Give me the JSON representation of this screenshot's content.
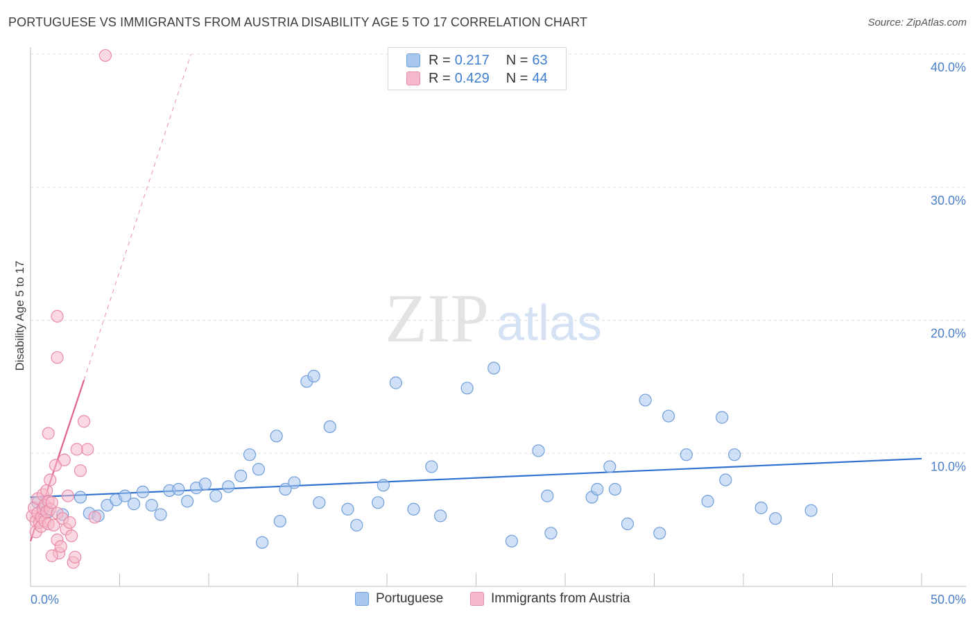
{
  "header": {
    "title": "PORTUGUESE VS IMMIGRANTS FROM AUSTRIA DISABILITY AGE 5 TO 17 CORRELATION CHART",
    "source": "Source: ZipAtlas.com"
  },
  "watermark": {
    "zip": "ZIP",
    "atlas": "atlas"
  },
  "legend": {
    "rows": [
      {
        "r_label": "R = ",
        "r_value": "0.217",
        "n_label": "N = ",
        "n_value": "63"
      },
      {
        "r_label": "R = ",
        "r_value": "0.429",
        "n_label": "N = ",
        "n_value": "44"
      }
    ]
  },
  "bottom_legend": {
    "series_a": "Portuguese",
    "series_b": "Immigrants from Austria"
  },
  "colors": {
    "blue_fill": "#a9c7ee",
    "blue_stroke": "#6f9ed9",
    "blue_line": "#2f6fcf",
    "pink_fill": "#f6b9cb",
    "pink_stroke": "#e98aa8",
    "pink_line": "#e0608c",
    "tick_text": "#4a7fc9",
    "grid": "#dcdcdc"
  },
  "chart_data": {
    "type": "scatter",
    "title": "PORTUGUESE VS IMMIGRANTS FROM AUSTRIA DISABILITY AGE 5 TO 17 CORRELATION CHART",
    "xlabel": "",
    "ylabel": "Disability Age 5 to 17",
    "xlim": [
      0,
      50
    ],
    "ylim": [
      0,
      40
    ],
    "x_tick_labels": [
      "0.0%",
      "50.0%"
    ],
    "y_ticks": [
      10,
      20,
      30,
      40
    ],
    "y_tick_labels": [
      "10.0%",
      "20.0%",
      "30.0%",
      "40.0%"
    ],
    "grid": true,
    "legend_position": "top-center",
    "series": [
      {
        "name": "Portuguese",
        "color": "#a9c7ee",
        "R": 0.217,
        "N": 63,
        "trend": {
          "x0": 0,
          "y0": 6.7,
          "x1": 50,
          "y1": 9.6,
          "style": "solid"
        },
        "points": [
          [
            0.4,
            6.3
          ],
          [
            0.7,
            5.9
          ],
          [
            1.0,
            5.6
          ],
          [
            1.8,
            5.4
          ],
          [
            2.8,
            6.7
          ],
          [
            3.3,
            5.5
          ],
          [
            3.8,
            5.3
          ],
          [
            4.3,
            6.1
          ],
          [
            4.8,
            6.5
          ],
          [
            5.3,
            6.8
          ],
          [
            5.8,
            6.2
          ],
          [
            6.3,
            7.1
          ],
          [
            6.8,
            6.1
          ],
          [
            7.3,
            5.4
          ],
          [
            7.8,
            7.2
          ],
          [
            8.3,
            7.3
          ],
          [
            8.8,
            6.4
          ],
          [
            9.3,
            7.4
          ],
          [
            9.8,
            7.7
          ],
          [
            10.4,
            6.8
          ],
          [
            11.1,
            7.5
          ],
          [
            11.8,
            8.3
          ],
          [
            12.3,
            9.9
          ],
          [
            12.8,
            8.8
          ],
          [
            13.0,
            3.3
          ],
          [
            13.8,
            11.3
          ],
          [
            14.0,
            4.9
          ],
          [
            14.3,
            7.3
          ],
          [
            14.8,
            7.8
          ],
          [
            15.5,
            15.4
          ],
          [
            15.9,
            15.8
          ],
          [
            16.2,
            6.3
          ],
          [
            16.8,
            12.0
          ],
          [
            17.8,
            5.8
          ],
          [
            18.3,
            4.6
          ],
          [
            19.5,
            6.3
          ],
          [
            19.8,
            7.6
          ],
          [
            20.5,
            15.3
          ],
          [
            21.5,
            5.8
          ],
          [
            22.5,
            9.0
          ],
          [
            23.0,
            5.3
          ],
          [
            24.5,
            14.9
          ],
          [
            26.0,
            16.4
          ],
          [
            27.0,
            3.4
          ],
          [
            28.5,
            10.2
          ],
          [
            29.0,
            6.8
          ],
          [
            29.2,
            4.0
          ],
          [
            31.5,
            6.7
          ],
          [
            31.8,
            7.3
          ],
          [
            32.5,
            9.0
          ],
          [
            32.8,
            7.3
          ],
          [
            33.5,
            4.7
          ],
          [
            34.5,
            14.0
          ],
          [
            35.3,
            4.0
          ],
          [
            35.8,
            12.8
          ],
          [
            36.8,
            9.9
          ],
          [
            38.0,
            6.4
          ],
          [
            38.8,
            12.7
          ],
          [
            39.0,
            8.0
          ],
          [
            39.5,
            9.9
          ],
          [
            41.0,
            5.9
          ],
          [
            41.8,
            5.1
          ],
          [
            43.8,
            5.7
          ]
        ]
      },
      {
        "name": "Immigrants from Austria",
        "color": "#f6b9cb",
        "R": 0.429,
        "N": 44,
        "trend": {
          "x0": 0,
          "y0": 3.4,
          "x1": 3.0,
          "y1": 15.5,
          "style": "solid"
        },
        "trend_extension": {
          "x0": 3.0,
          "y0": 15.5,
          "x1": 9.0,
          "y1": 40.0,
          "style": "dashed"
        },
        "points": [
          [
            0.1,
            5.3
          ],
          [
            0.2,
            5.9
          ],
          [
            0.3,
            4.9
          ],
          [
            0.3,
            4.1
          ],
          [
            0.4,
            6.6
          ],
          [
            0.4,
            5.5
          ],
          [
            0.5,
            4.8
          ],
          [
            0.6,
            5.2
          ],
          [
            0.6,
            4.5
          ],
          [
            0.7,
            6.9
          ],
          [
            0.7,
            5.8
          ],
          [
            0.8,
            6.1
          ],
          [
            0.8,
            4.9
          ],
          [
            0.9,
            7.2
          ],
          [
            0.9,
            5.6
          ],
          [
            1.0,
            6.4
          ],
          [
            1.0,
            4.7
          ],
          [
            1.1,
            5.8
          ],
          [
            1.1,
            8.0
          ],
          [
            1.2,
            6.3
          ],
          [
            1.3,
            4.6
          ],
          [
            1.4,
            9.1
          ],
          [
            1.5,
            5.5
          ],
          [
            1.5,
            3.5
          ],
          [
            1.6,
            2.5
          ],
          [
            1.7,
            3.0
          ],
          [
            1.8,
            5.1
          ],
          [
            1.9,
            9.5
          ],
          [
            2.0,
            4.3
          ],
          [
            2.1,
            6.8
          ],
          [
            2.2,
            4.8
          ],
          [
            2.3,
            3.8
          ],
          [
            2.4,
            1.8
          ],
          [
            2.5,
            2.2
          ],
          [
            2.6,
            10.3
          ],
          [
            2.8,
            8.7
          ],
          [
            3.0,
            12.4
          ],
          [
            3.2,
            10.3
          ],
          [
            3.6,
            5.2
          ],
          [
            1.0,
            11.5
          ],
          [
            1.5,
            17.2
          ],
          [
            1.5,
            20.3
          ],
          [
            1.2,
            2.3
          ],
          [
            4.2,
            39.9
          ]
        ]
      }
    ]
  }
}
